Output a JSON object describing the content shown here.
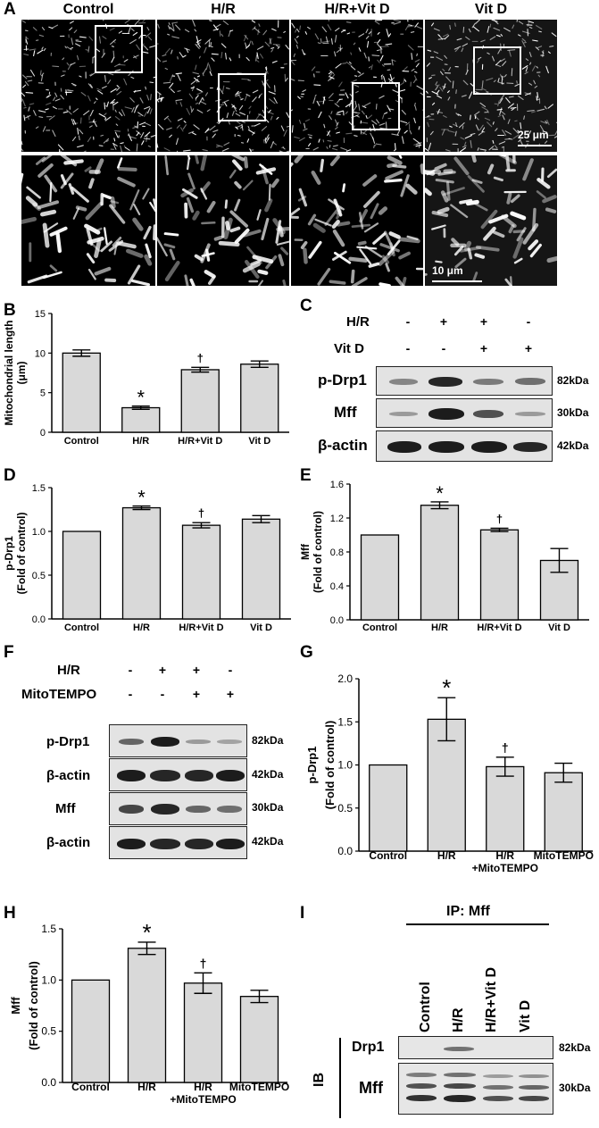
{
  "panel_letters": {
    "A": "A",
    "B": "B",
    "C": "C",
    "D": "D",
    "E": "E",
    "F": "F",
    "G": "G",
    "H": "H",
    "I": "I"
  },
  "panelA": {
    "columns": [
      "Control",
      "H/R",
      "H/R+Vit D",
      "Vit D"
    ],
    "scalebar_top": "25 μm",
    "scalebar_bottom": "10 μm"
  },
  "panelC": {
    "rows": [
      {
        "label": "H/R",
        "signs": [
          "-",
          "+",
          "+",
          "-"
        ]
      },
      {
        "label": "Vit D",
        "signs": [
          "-",
          "-",
          "+",
          "+"
        ]
      }
    ],
    "blots": [
      {
        "label": "p-Drp1",
        "mw": "82kDa"
      },
      {
        "label": "Mff",
        "mw": "30kDa"
      },
      {
        "label": "β-actin",
        "mw": "42kDa"
      }
    ]
  },
  "panelF": {
    "rows": [
      {
        "label": "H/R",
        "signs": [
          "-",
          "+",
          "+",
          "-"
        ]
      },
      {
        "label": "MitoTEMPO",
        "signs": [
          "-",
          "-",
          "+",
          "+"
        ]
      }
    ],
    "blots": [
      {
        "label": "p-Drp1",
        "mw": "82kDa"
      },
      {
        "label": "β-actin",
        "mw": "42kDa"
      },
      {
        "label": "Mff",
        "mw": "30kDa"
      },
      {
        "label": "β-actin",
        "mw": "42kDa"
      }
    ]
  },
  "panelI": {
    "header": "IP: Mff",
    "columns": [
      "Control",
      "H/R",
      "H/R+Vit D",
      "Vit D"
    ],
    "side_label": "IB",
    "blots": [
      {
        "label": "Drp1",
        "mw": "82kDa"
      },
      {
        "label": "Mff",
        "mw": "30kDa"
      }
    ]
  },
  "chart_data": [
    {
      "id": "B",
      "type": "bar",
      "categories": [
        "Control",
        "H/R",
        "H/R+Vit D",
        "Vit D"
      ],
      "values": [
        10.0,
        3.1,
        7.9,
        8.6
      ],
      "errors": [
        0.4,
        0.2,
        0.3,
        0.4
      ],
      "annotations": [
        "",
        "*",
        "†",
        ""
      ],
      "ylabel": "Mitochondrial length (μm)",
      "ylim": [
        0,
        15
      ],
      "yticks": [
        "0",
        "5",
        "10",
        "15"
      ]
    },
    {
      "id": "D",
      "type": "bar",
      "categories": [
        "Control",
        "H/R",
        "H/R+Vit D",
        "Vit D"
      ],
      "values": [
        1.0,
        1.27,
        1.07,
        1.14
      ],
      "errors": [
        0,
        0.02,
        0.03,
        0.04
      ],
      "annotations": [
        "",
        "*",
        "†",
        ""
      ],
      "ylabel": "p-Drp1 (Fold of control)",
      "ylim": [
        0,
        1.5
      ],
      "yticks": [
        "0.0",
        "0.5",
        "1.0",
        "1.5"
      ]
    },
    {
      "id": "E",
      "type": "bar",
      "categories": [
        "Control",
        "H/R",
        "H/R+Vit D",
        "Vit D"
      ],
      "values": [
        1.0,
        1.35,
        1.06,
        0.7
      ],
      "errors": [
        0,
        0.04,
        0.02,
        0.14
      ],
      "annotations": [
        "",
        "*",
        "†",
        ""
      ],
      "ylabel": "Mff (Fold of control)",
      "ylim": [
        0,
        1.6
      ],
      "yticks": [
        "0.0",
        "0.4",
        "0.8",
        "1.2",
        "1.6"
      ]
    },
    {
      "id": "G",
      "type": "bar",
      "categories": [
        "Control",
        "H/R",
        "H/R +MitoTEMPO",
        "MitoTEMPO"
      ],
      "values": [
        1.0,
        1.53,
        0.98,
        0.91
      ],
      "errors": [
        0,
        0.25,
        0.11,
        0.11
      ],
      "annotations": [
        "",
        "*",
        "†",
        ""
      ],
      "ylabel": "p-Drp1 (Fold of control)",
      "ylim": [
        0,
        2.0
      ],
      "yticks": [
        "0.0",
        "0.5",
        "1.0",
        "1.5",
        "2.0"
      ]
    },
    {
      "id": "H",
      "type": "bar",
      "categories": [
        "Control",
        "H/R",
        "H/R +MitoTEMPO",
        "MitoTEMPO"
      ],
      "values": [
        1.0,
        1.31,
        0.97,
        0.84
      ],
      "errors": [
        0,
        0.06,
        0.1,
        0.06
      ],
      "annotations": [
        "",
        "*",
        "†",
        ""
      ],
      "ylabel": "Mff (Fold of control)",
      "ylim": [
        0,
        1.5
      ],
      "yticks": [
        "0.0",
        "0.5",
        "1.0",
        "1.5"
      ]
    }
  ]
}
